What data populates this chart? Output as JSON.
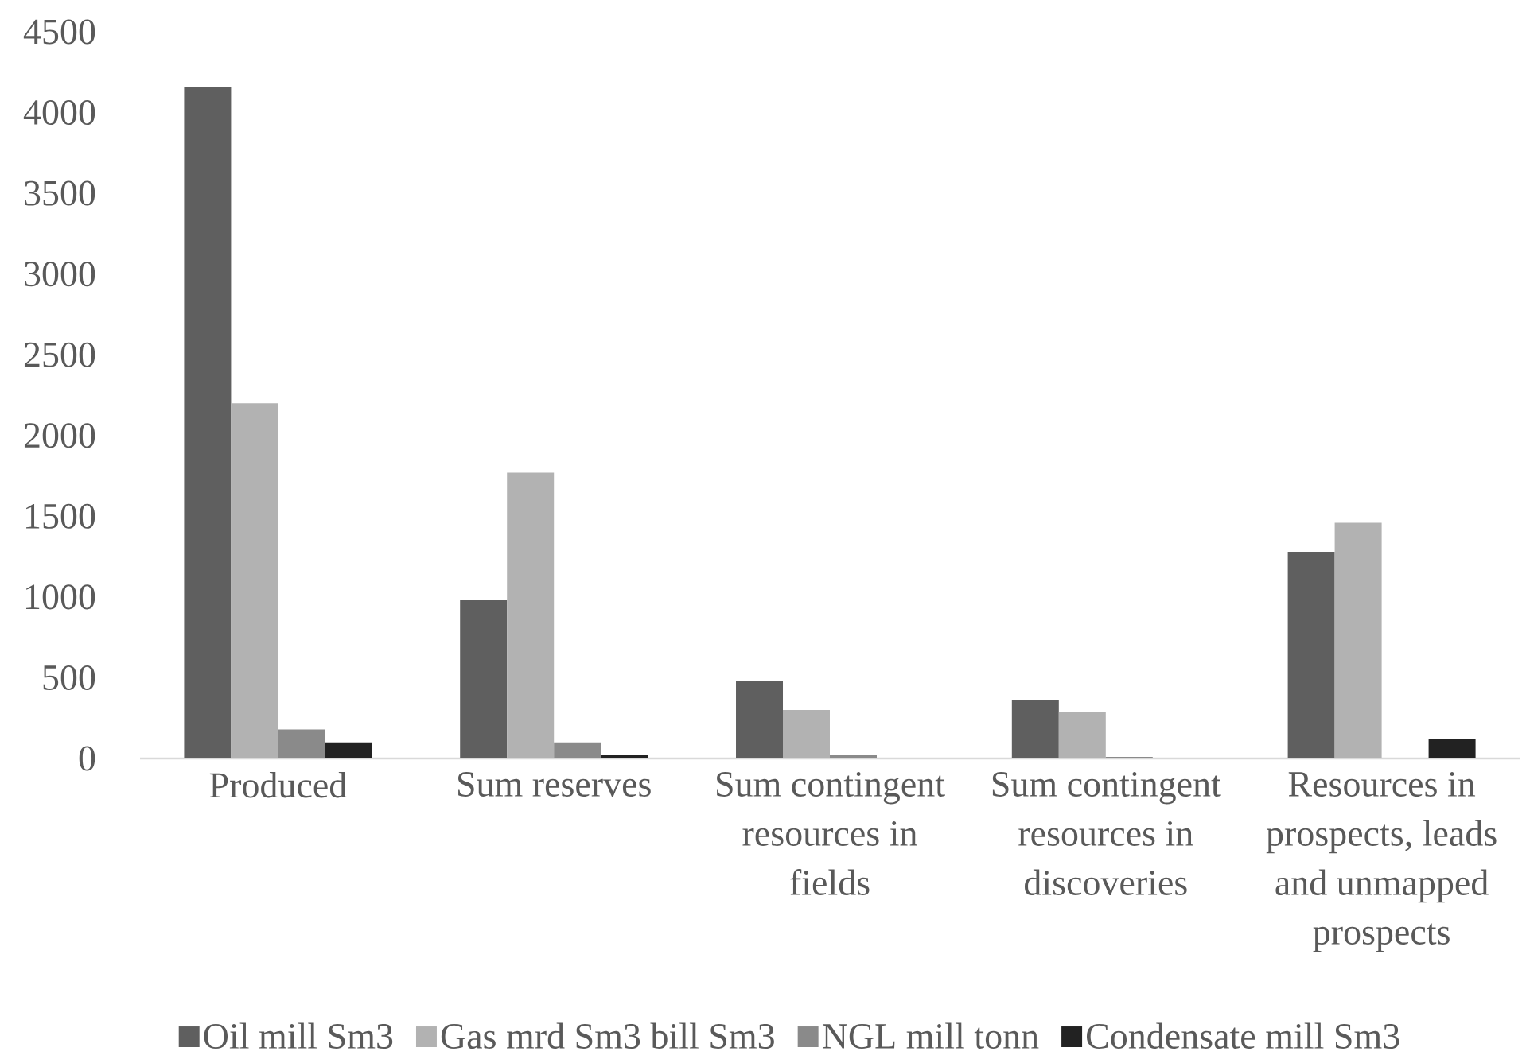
{
  "chart_data": {
    "type": "bar",
    "categories": [
      "Produced",
      "Sum reserves",
      "Sum contingent resources in fields",
      "Sum contingent resources in discoveries",
      "Resources in prospects, leads and unmapped prospects"
    ],
    "series": [
      {
        "name": "Oil mill Sm3",
        "color": "#5f5f5f",
        "values": [
          4160,
          980,
          480,
          360,
          1280
        ]
      },
      {
        "name": "Gas mrd Sm3 bill Sm3",
        "color": "#b2b2b2",
        "values": [
          2200,
          1770,
          300,
          290,
          1460
        ]
      },
      {
        "name": "NGL mill tonn",
        "color": "#8a8a8a",
        "values": [
          180,
          100,
          20,
          10,
          null
        ]
      },
      {
        "name": "Condensate mill Sm3",
        "color": "#222222",
        "values": [
          100,
          20,
          null,
          null,
          120
        ]
      }
    ],
    "ylim": [
      0,
      4500
    ],
    "yticks": [
      0,
      500,
      1000,
      1500,
      2000,
      2500,
      3000,
      3500,
      4000,
      4500
    ],
    "legend": "bottom"
  }
}
